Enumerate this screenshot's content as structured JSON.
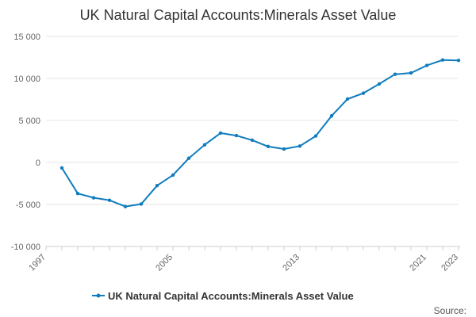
{
  "chart_data": {
    "type": "line",
    "title": "UK Natural Capital Accounts:Minerals Asset Value",
    "xlabel": "",
    "ylabel": "",
    "x_tick_labels": [
      "1997",
      "2005",
      "2013",
      "2021",
      "2023"
    ],
    "y_tick_labels": [
      "15 000",
      "10 000",
      "5 000",
      "0",
      "-5 000",
      "-10 000"
    ],
    "x_ticks": [
      1997,
      2005,
      2013,
      2021,
      2023
    ],
    "y_ticks": [
      15000,
      10000,
      5000,
      0,
      -5000,
      -10000
    ],
    "xlim": [
      1997,
      2023
    ],
    "ylim": [
      -10000,
      15000
    ],
    "grid": "horizontal",
    "legend_position": "bottom",
    "series": [
      {
        "name": "UK Natural Capital Accounts:Minerals Asset Value",
        "color": "#0f7cbf",
        "x": [
          1998,
          1999,
          2000,
          2001,
          2002,
          2003,
          2004,
          2005,
          2006,
          2007,
          2008,
          2009,
          2010,
          2011,
          2012,
          2013,
          2014,
          2015,
          2016,
          2017,
          2018,
          2019,
          2020,
          2021,
          2022,
          2023
        ],
        "values": [
          -650,
          -3700,
          -4200,
          -4500,
          -5250,
          -4950,
          -2750,
          -1500,
          500,
          2100,
          3500,
          3200,
          2650,
          1900,
          1600,
          1950,
          3150,
          5550,
          7550,
          8250,
          9350,
          10500,
          10650,
          11550,
          12200,
          12150
        ]
      }
    ]
  },
  "footer": {
    "source_label": "Source:"
  }
}
